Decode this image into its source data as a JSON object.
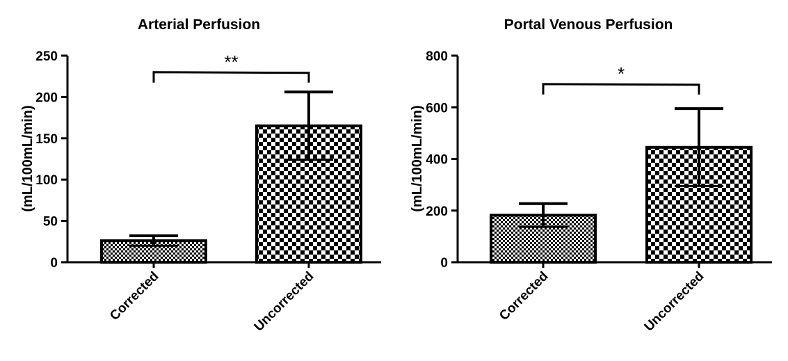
{
  "chart_data": [
    {
      "type": "bar",
      "title": "Arterial Perfusion",
      "ylabel": "(mL/100mL/min)",
      "xlabel": "",
      "ylim": [
        0,
        250
      ],
      "yticks": [
        0,
        50,
        100,
        150,
        200,
        250
      ],
      "categories": [
        "Corrected",
        "Uncorrected"
      ],
      "values": [
        26,
        165
      ],
      "errors": [
        6,
        41
      ],
      "patterns": [
        "fine-check",
        "coarse-check"
      ],
      "significance": {
        "label": "**",
        "between": [
          0,
          1
        ],
        "y": 230
      }
    },
    {
      "type": "bar",
      "title": "Portal Venous Perfusion",
      "ylabel": "(mL/100mL/min)",
      "xlabel": "",
      "ylim": [
        0,
        800
      ],
      "yticks": [
        0,
        200,
        400,
        600,
        800
      ],
      "categories": [
        "Corrected",
        "Uncorrected"
      ],
      "values": [
        182,
        445
      ],
      "errors": [
        45,
        150
      ],
      "patterns": [
        "fine-check",
        "coarse-check"
      ],
      "significance": {
        "label": "*",
        "between": [
          0,
          1
        ],
        "y": 690
      }
    }
  ]
}
